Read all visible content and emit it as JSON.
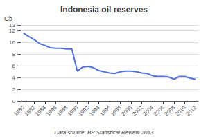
{
  "chart_data": {
    "type": "line",
    "title": "Indonesia oil reserves",
    "ylabel": "Gb",
    "annotation": "Data source: BP Statistical Review 2013",
    "x": [
      1980,
      1981,
      1982,
      1983,
      1984,
      1985,
      1986,
      1987,
      1988,
      1989,
      1990,
      1991,
      1992,
      1993,
      1994,
      1995,
      1996,
      1997,
      1998,
      1999,
      2000,
      2001,
      2002,
      2003,
      2004,
      2005,
      2006,
      2007,
      2008,
      2009,
      2010,
      2011,
      2012
    ],
    "values": [
      11.6,
      11.0,
      10.5,
      9.8,
      9.5,
      9.1,
      9.0,
      9.0,
      8.9,
      8.9,
      5.1,
      5.8,
      5.9,
      5.7,
      5.2,
      5.0,
      4.8,
      4.7,
      5.0,
      5.1,
      5.1,
      5.0,
      4.8,
      4.7,
      4.3,
      4.2,
      4.2,
      4.1,
      3.7,
      4.2,
      4.2,
      3.9,
      3.7
    ],
    "xlim": [
      1979.5,
      2012.5
    ],
    "xticks": [
      1980,
      1982,
      1984,
      1986,
      1988,
      1990,
      1992,
      1994,
      1996,
      1998,
      2000,
      2002,
      2004,
      2006,
      2008,
      2010,
      2012
    ],
    "ylim": [
      0,
      13
    ],
    "yticks": [
      0,
      2,
      4,
      6,
      8,
      10,
      12
    ],
    "grid": true
  }
}
